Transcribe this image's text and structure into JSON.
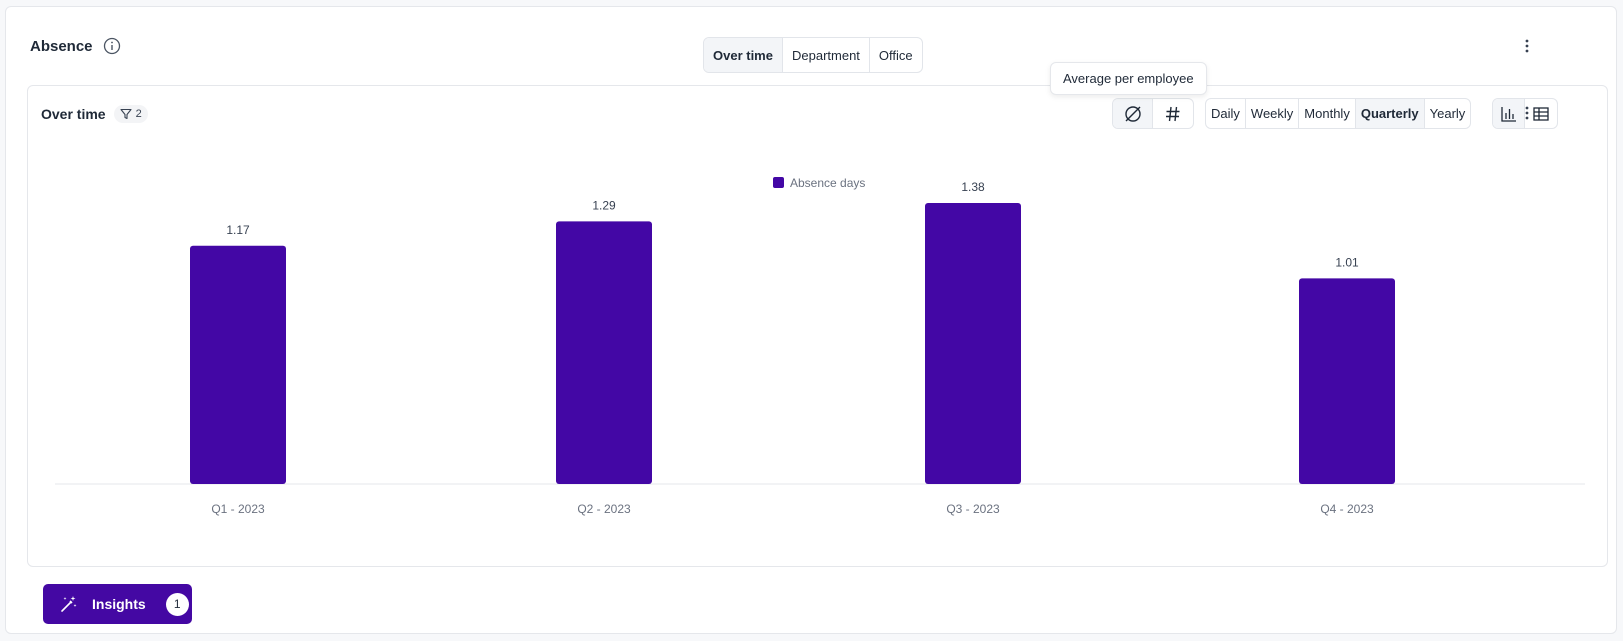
{
  "header": {
    "title": "Absence",
    "tabs": [
      {
        "label": "Over time",
        "active": true
      },
      {
        "label": "Department",
        "active": false
      },
      {
        "label": "Office",
        "active": false
      }
    ]
  },
  "panel": {
    "title": "Over time",
    "filter_count": "2",
    "metric_toggle": [
      {
        "icon": "average-icon",
        "active": true
      },
      {
        "icon": "hash-icon",
        "active": false
      }
    ],
    "tooltip": "Average per employee",
    "periods": [
      {
        "label": "Daily",
        "active": false
      },
      {
        "label": "Weekly",
        "active": false
      },
      {
        "label": "Monthly",
        "active": false
      },
      {
        "label": "Quarterly",
        "active": true
      },
      {
        "label": "Yearly",
        "active": false
      }
    ],
    "views": [
      {
        "icon": "bar-chart-icon",
        "active": true
      },
      {
        "icon": "table-icon",
        "active": false
      }
    ]
  },
  "insights": {
    "label": "Insights",
    "count": "1"
  },
  "colors": {
    "accent": "#4408a3",
    "bar": "#4307a5"
  },
  "chart_data": {
    "type": "bar",
    "categories": [
      "Q1 - 2023",
      "Q2 - 2023",
      "Q3 - 2023",
      "Q4 - 2023"
    ],
    "series": [
      {
        "name": "Absence days",
        "values": [
          1.17,
          1.29,
          1.38,
          1.01
        ]
      }
    ],
    "data_labels": [
      "1.17",
      "1.29",
      "1.38",
      "1.01"
    ],
    "ylim": [
      0,
      1.38
    ],
    "grid": false,
    "legend": "top-center"
  }
}
